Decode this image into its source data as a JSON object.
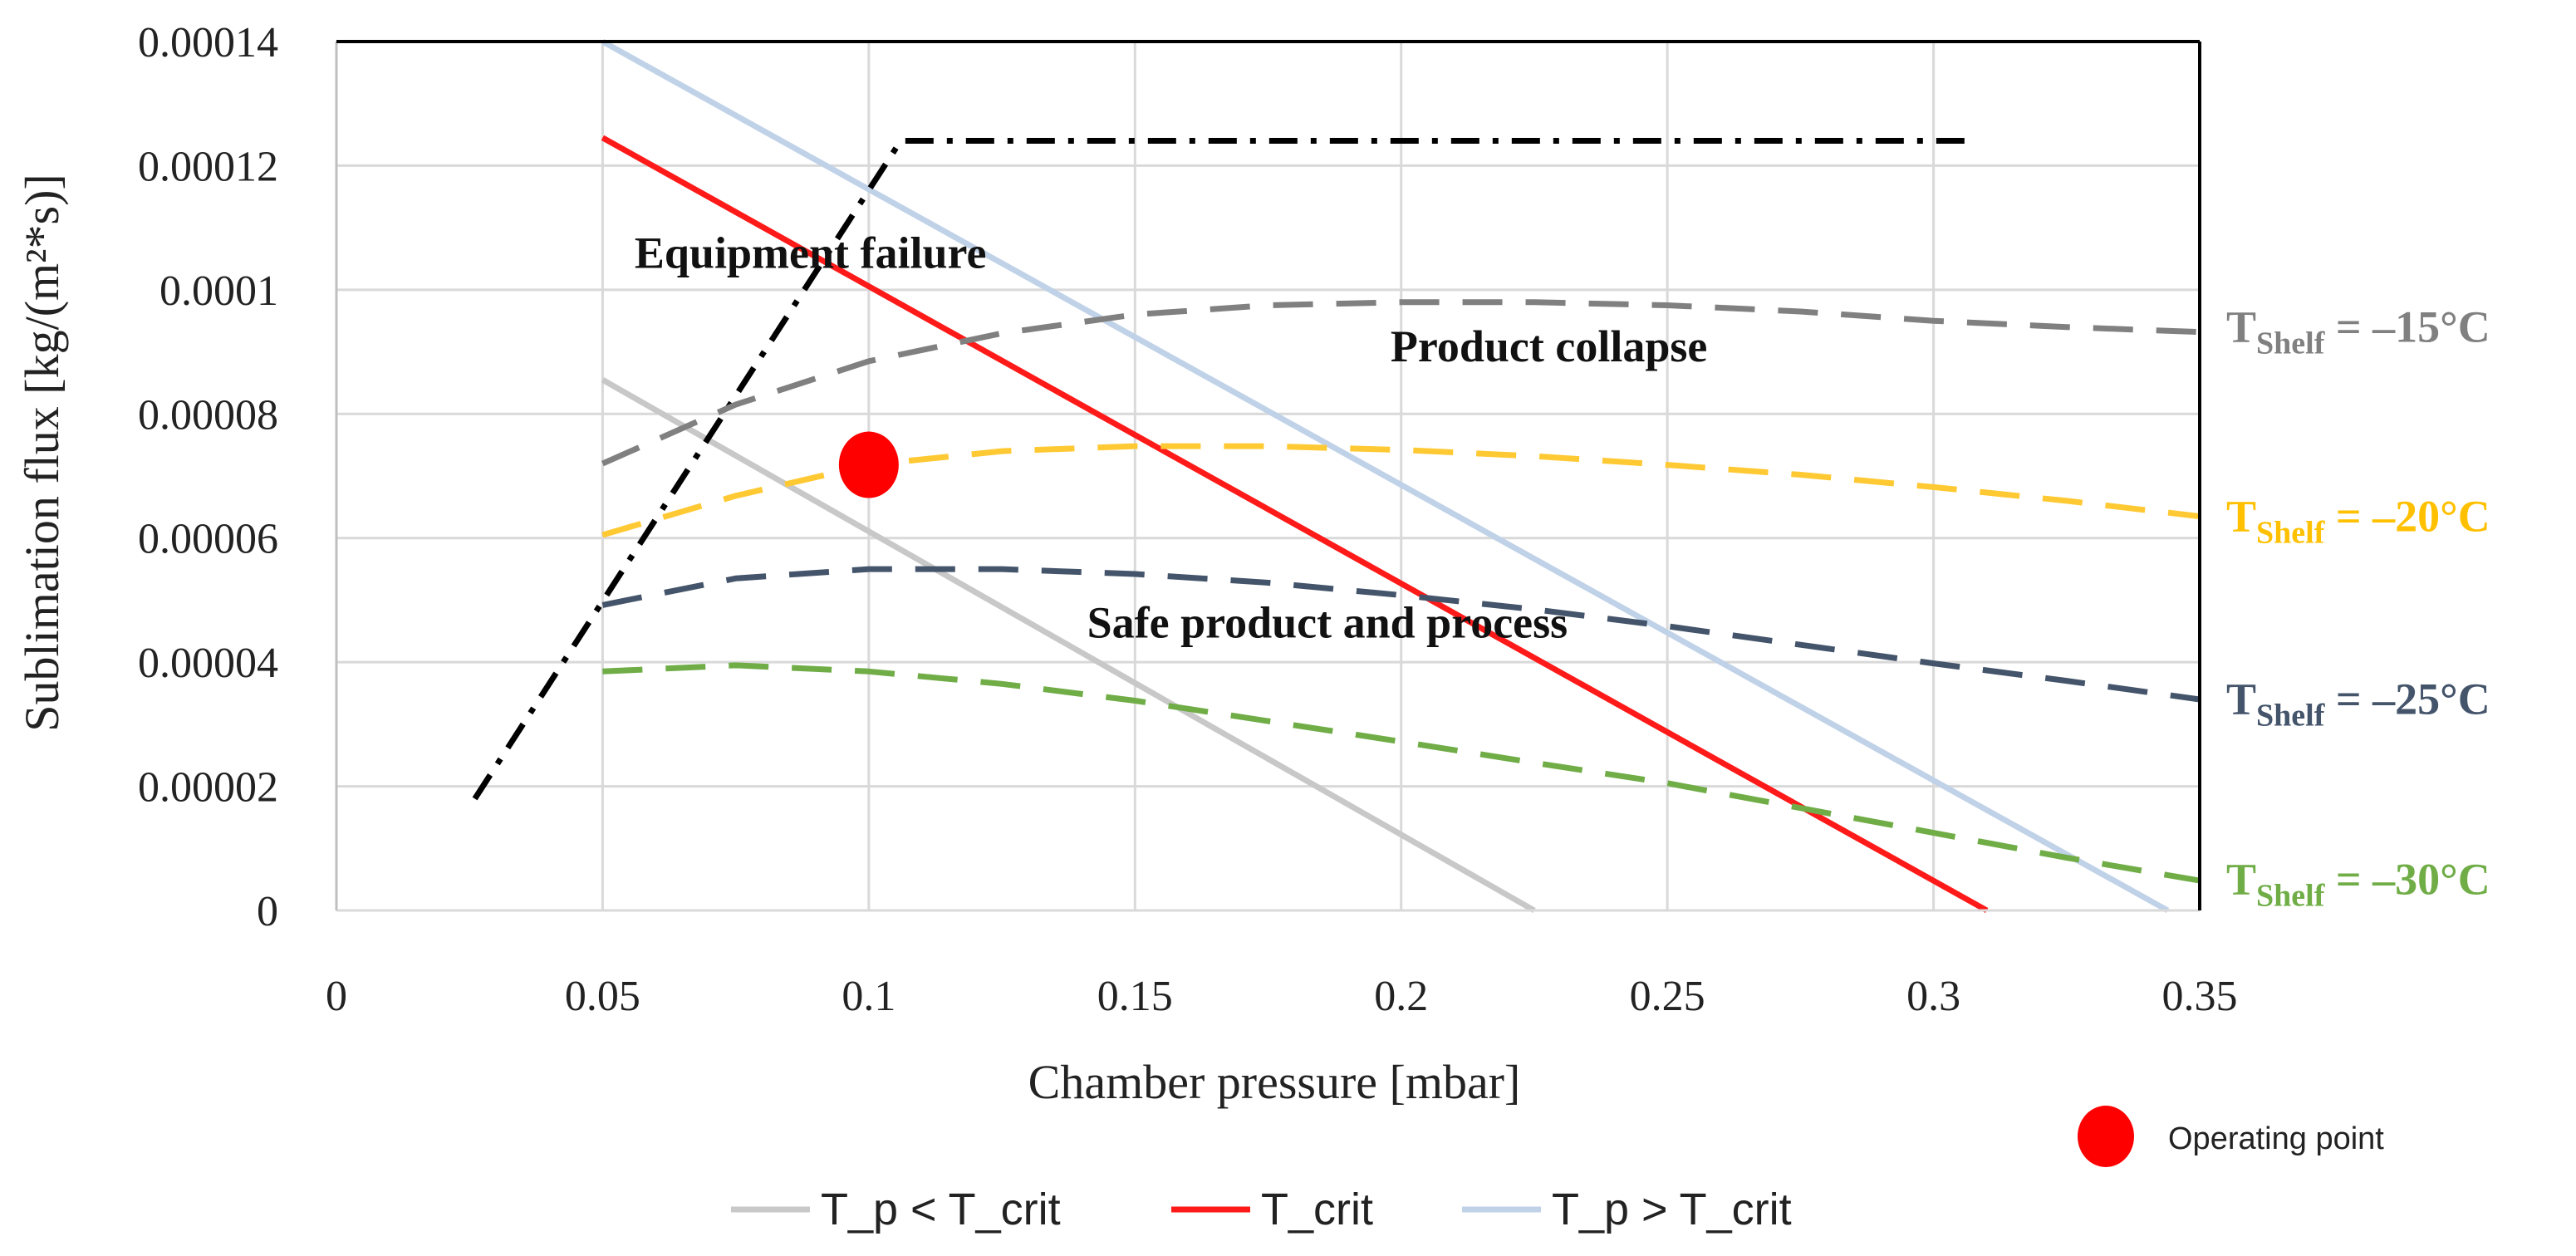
{
  "chart_data": {
    "type": "line",
    "title": "",
    "xlabel": "Chamber pressure [mbar]",
    "ylabel": "Sublimation flux [kg/(m²*s)]",
    "xlim": [
      0,
      0.35
    ],
    "ylim": [
      0,
      0.00014
    ],
    "x_ticks": [
      0,
      0.05,
      0.1,
      0.15,
      0.2,
      0.25,
      0.3,
      0.35
    ],
    "x_tick_labels": [
      "0",
      "0.05",
      "0.1",
      "0.15",
      "0.2",
      "0.25",
      "0.3",
      "0.35"
    ],
    "y_ticks": [
      0,
      2e-05,
      4e-05,
      6e-05,
      8e-05,
      0.0001,
      0.00012,
      0.00014
    ],
    "y_tick_labels": [
      "0",
      "0.00002",
      "0.00004",
      "0.00006",
      "0.00008",
      "0.0001",
      "0.00012",
      "0.00014"
    ],
    "grid": true,
    "legend": [
      "T_p < T_crit",
      "T_crit",
      "T_p > T_crit"
    ],
    "legend_placement": "bottom",
    "operating_point_label": "Operating point",
    "series": [
      {
        "name": "T_p < T_crit",
        "color": "#c8c8c8",
        "style": "solid",
        "points": [
          [
            0.05,
            8.55e-05
          ],
          [
            0.225,
            0.0
          ]
        ]
      },
      {
        "name": "T_crit",
        "color": "#ff1a1a",
        "style": "solid",
        "points": [
          [
            0.05,
            0.0001245
          ],
          [
            0.31,
            0.0
          ]
        ]
      },
      {
        "name": "T_p > T_crit",
        "color": "#c0d2e8",
        "style": "solid",
        "points": [
          [
            0.05,
            0.00014
          ],
          [
            0.344,
            0.0
          ]
        ]
      },
      {
        "name": "Equipment limit",
        "color": "#000000",
        "style": "dashdot",
        "points": [
          [
            0.026,
            1.8e-05
          ],
          [
            0.106,
            0.000124
          ],
          [
            0.306,
            0.000124
          ]
        ]
      },
      {
        "name": "T_Shelf -15°C",
        "color": "#808080",
        "style": "dashed",
        "points": [
          [
            0.05,
            7.2e-05
          ],
          [
            0.075,
            8.15e-05
          ],
          [
            0.1,
            8.85e-05
          ],
          [
            0.125,
            9.3e-05
          ],
          [
            0.15,
            9.6e-05
          ],
          [
            0.175,
            9.75e-05
          ],
          [
            0.2,
            9.8e-05
          ],
          [
            0.225,
            9.8e-05
          ],
          [
            0.25,
            9.75e-05
          ],
          [
            0.275,
            9.65e-05
          ],
          [
            0.3,
            9.5e-05
          ],
          [
            0.325,
            9.4e-05
          ],
          [
            0.35,
            9.32e-05
          ]
        ]
      },
      {
        "name": "T_Shelf -20°C",
        "color": "#ffc933",
        "style": "dashed",
        "points": [
          [
            0.05,
            6.05e-05
          ],
          [
            0.075,
            6.68e-05
          ],
          [
            0.1,
            7.18e-05
          ],
          [
            0.125,
            7.4e-05
          ],
          [
            0.15,
            7.48e-05
          ],
          [
            0.175,
            7.48e-05
          ],
          [
            0.2,
            7.42e-05
          ],
          [
            0.225,
            7.32e-05
          ],
          [
            0.25,
            7.18e-05
          ],
          [
            0.275,
            7.02e-05
          ],
          [
            0.3,
            6.82e-05
          ],
          [
            0.325,
            6.6e-05
          ],
          [
            0.35,
            6.35e-05
          ]
        ]
      },
      {
        "name": "T_Shelf -25°C",
        "color": "#44546a",
        "style": "dashed",
        "points": [
          [
            0.05,
            4.92e-05
          ],
          [
            0.075,
            5.35e-05
          ],
          [
            0.1,
            5.5e-05
          ],
          [
            0.125,
            5.5e-05
          ],
          [
            0.15,
            5.42e-05
          ],
          [
            0.175,
            5.28e-05
          ],
          [
            0.2,
            5.08e-05
          ],
          [
            0.225,
            4.85e-05
          ],
          [
            0.25,
            4.58e-05
          ],
          [
            0.275,
            4.28e-05
          ],
          [
            0.3,
            3.98e-05
          ],
          [
            0.325,
            3.7e-05
          ],
          [
            0.35,
            3.4e-05
          ]
        ]
      },
      {
        "name": "T_Shelf -30°C",
        "color": "#70ad47",
        "style": "dashed",
        "points": [
          [
            0.05,
            3.85e-05
          ],
          [
            0.075,
            3.95e-05
          ],
          [
            0.1,
            3.85e-05
          ],
          [
            0.125,
            3.65e-05
          ],
          [
            0.15,
            3.38e-05
          ],
          [
            0.175,
            3.05e-05
          ],
          [
            0.2,
            2.72e-05
          ],
          [
            0.225,
            2.38e-05
          ],
          [
            0.25,
            2.05e-05
          ],
          [
            0.275,
            1.65e-05
          ],
          [
            0.3,
            1.25e-05
          ],
          [
            0.325,
            8.5e-06
          ],
          [
            0.35,
            4.8e-06
          ]
        ]
      }
    ],
    "operating_point": {
      "x": 0.1,
      "y": 7.18e-05,
      "color": "#ff0000"
    },
    "annotations": [
      {
        "text": "Equipment failure",
        "x": 0.056,
        "y": 0.0001035
      },
      {
        "text": "Product collapse",
        "x": 0.198,
        "y": 8.85e-05
      },
      {
        "text": "Safe product and process",
        "x": 0.141,
        "y": 4.4e-05
      }
    ],
    "shelf_labels": [
      {
        "main": "T",
        "sub": "Shelf",
        "value": " = –15°C",
        "color": "#808080",
        "y": 9.35e-05
      },
      {
        "main": "T",
        "sub": "Shelf",
        "value": " = –20°C",
        "color": "#ffc000",
        "y": 6.3e-05
      },
      {
        "main": "T",
        "sub": "Shelf",
        "value": " = –25°C",
        "color": "#44546a",
        "y": 3.35e-05
      },
      {
        "main": "T",
        "sub": "Shelf",
        "value": " = –30°C",
        "color": "#70ad47",
        "y": 4.5e-06
      }
    ]
  }
}
